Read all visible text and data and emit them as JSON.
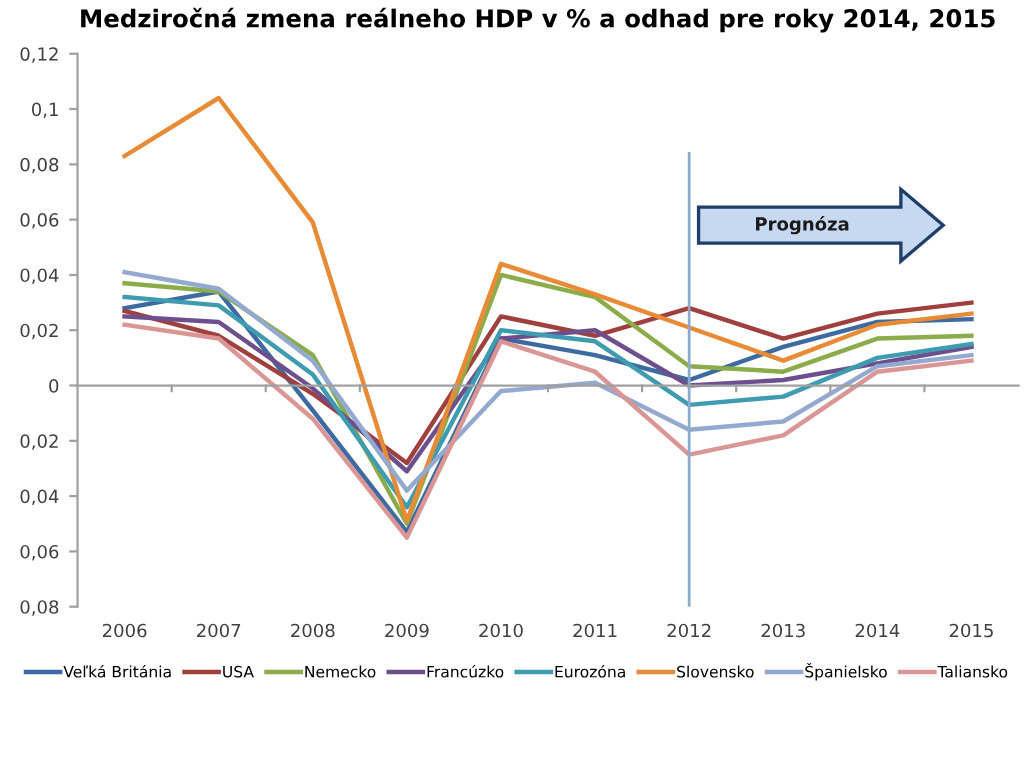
{
  "chart_data": {
    "type": "line",
    "title": "Medziročná zmena reálneho HDP v % a odhad pre roky 2014, 2015",
    "categories": [
      "2006",
      "2007",
      "2008",
      "2009",
      "2010",
      "2011",
      "2012",
      "2013",
      "2014",
      "2015"
    ],
    "series": [
      {
        "name": "Veľká Británia",
        "color": "#3d6aa0",
        "values": [
          0.028,
          0.034,
          -0.009,
          -0.053,
          0.017,
          0.011,
          0.002,
          0.014,
          0.023,
          0.024
        ]
      },
      {
        "name": "USA",
        "color": "#a0403e",
        "values": [
          0.027,
          0.018,
          -0.003,
          -0.028,
          0.025,
          0.018,
          0.028,
          0.017,
          0.026,
          0.03
        ]
      },
      {
        "name": "Nemecko",
        "color": "#8aac4a",
        "values": [
          0.037,
          0.034,
          0.011,
          -0.05,
          0.04,
          0.032,
          0.007,
          0.005,
          0.017,
          0.018
        ]
      },
      {
        "name": "Francúzko",
        "color": "#6c4f8c",
        "values": [
          0.025,
          0.023,
          -0.001,
          -0.031,
          0.017,
          0.02,
          0.0,
          0.002,
          0.008,
          0.014
        ]
      },
      {
        "name": "Eurozóna",
        "color": "#3e9bb0",
        "values": [
          0.032,
          0.029,
          0.004,
          -0.044,
          0.02,
          0.016,
          -0.007,
          -0.004,
          0.01,
          0.015
        ]
      },
      {
        "name": "Slovensko",
        "color": "#e88b36",
        "values": [
          0.083,
          0.104,
          0.059,
          -0.049,
          0.044,
          0.033,
          0.021,
          0.009,
          0.022,
          0.026
        ]
      },
      {
        "name": "Španielsko",
        "color": "#93a9cf",
        "values": [
          0.041,
          0.035,
          0.009,
          -0.038,
          -0.002,
          0.001,
          -0.016,
          -0.013,
          0.007,
          0.011
        ]
      },
      {
        "name": "Taliansko",
        "color": "#d99694",
        "values": [
          0.022,
          0.017,
          -0.012,
          -0.055,
          0.016,
          0.005,
          -0.025,
          -0.018,
          0.005,
          0.009
        ]
      }
    ],
    "ylim": [
      -0.08,
      0.12
    ],
    "yticks": [
      {
        "value": -0.08,
        "label": "0,08"
      },
      {
        "value": -0.06,
        "label": "0,06"
      },
      {
        "value": -0.04,
        "label": "0,04"
      },
      {
        "value": -0.02,
        "label": "0,02"
      },
      0,
      {
        "value": 0.02,
        "label": "0,02"
      },
      {
        "value": 0.04,
        "label": "0,04"
      },
      {
        "value": 0.06,
        "label": "0,06"
      },
      {
        "value": 0.08,
        "label": "0,08"
      },
      {
        "value": 0.1,
        "label": "0,1"
      },
      {
        "value": 0.12,
        "label": "0,12"
      }
    ],
    "ref_lines": [
      {
        "axis": "x",
        "value": "2012",
        "color": "#8eaacc"
      }
    ],
    "annotations": [
      "Prognóza"
    ],
    "legend": "bottom",
    "grid": false,
    "marker": "none",
    "line_style": "solid"
  }
}
